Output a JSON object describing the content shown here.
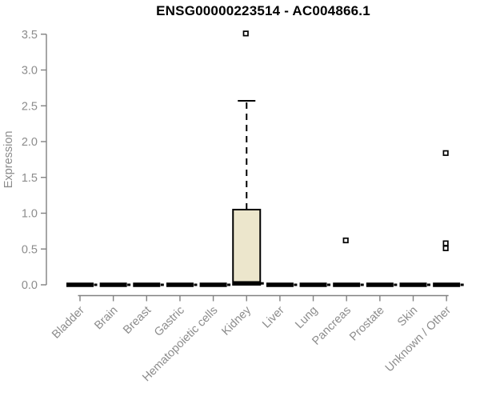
{
  "chart_data": {
    "type": "boxplot",
    "title": "ENSG00000223514 - AC004866.1",
    "xlabel": "",
    "ylabel": "Expression",
    "ylim": [
      0,
      3.5
    ],
    "yticks": [
      0,
      0.5,
      1,
      1.5,
      2,
      2.5,
      3,
      3.5
    ],
    "ytick_labels": [
      "0.0",
      "0.5",
      "1.0",
      "1.5",
      "2.0",
      "2.5",
      "3.0",
      "3.5"
    ],
    "grid": false,
    "legend": null,
    "xtick_rotation_deg": 45,
    "categories": [
      "Bladder",
      "Brain",
      "Breast",
      "Gastric",
      "Hematopoietic cells",
      "Kidney",
      "Liver",
      "Lung",
      "Pancreas",
      "Prostate",
      "Skin",
      "Unknown / Other"
    ],
    "boxes": [
      {
        "category": "Bladder",
        "low": 0,
        "q1": 0,
        "median": 0,
        "q3": 0,
        "high": 0,
        "outliers": []
      },
      {
        "category": "Brain",
        "low": 0,
        "q1": 0,
        "median": 0,
        "q3": 0,
        "high": 0,
        "outliers": []
      },
      {
        "category": "Breast",
        "low": 0,
        "q1": 0,
        "median": 0,
        "q3": 0,
        "high": 0,
        "outliers": []
      },
      {
        "category": "Gastric",
        "low": 0,
        "q1": 0,
        "median": 0,
        "q3": 0,
        "high": 0,
        "outliers": []
      },
      {
        "category": "Hematopoietic cells",
        "low": 0,
        "q1": 0,
        "median": 0,
        "q3": 0,
        "high": 0,
        "outliers": []
      },
      {
        "category": "Kidney",
        "low": 0,
        "q1": 0,
        "median": 0.02,
        "q3": 1.05,
        "high": 2.57,
        "outliers": [
          3.51
        ]
      },
      {
        "category": "Liver",
        "low": 0,
        "q1": 0,
        "median": 0,
        "q3": 0,
        "high": 0,
        "outliers": []
      },
      {
        "category": "Lung",
        "low": 0,
        "q1": 0,
        "median": 0,
        "q3": 0,
        "high": 0,
        "outliers": []
      },
      {
        "category": "Pancreas",
        "low": 0,
        "q1": 0,
        "median": 0,
        "q3": 0,
        "high": 0,
        "outliers": [
          0.62
        ]
      },
      {
        "category": "Prostate",
        "low": 0,
        "q1": 0,
        "median": 0,
        "q3": 0,
        "high": 0,
        "outliers": []
      },
      {
        "category": "Skin",
        "low": 0,
        "q1": 0,
        "median": 0,
        "q3": 0,
        "high": 0,
        "outliers": []
      },
      {
        "category": "Unknown / Other",
        "low": 0,
        "q1": 0,
        "median": 0,
        "q3": 0,
        "high": 0,
        "outliers": [
          1.84,
          0.58,
          0.51
        ]
      }
    ],
    "colors": {
      "box_fill": "#ECE6CC",
      "box_stroke": "#000000",
      "median": "#000000",
      "outlier_stroke": "#000000",
      "axis": "#818181",
      "text": "#8c8c8c",
      "title": "#000000",
      "background": "#ffffff"
    }
  }
}
